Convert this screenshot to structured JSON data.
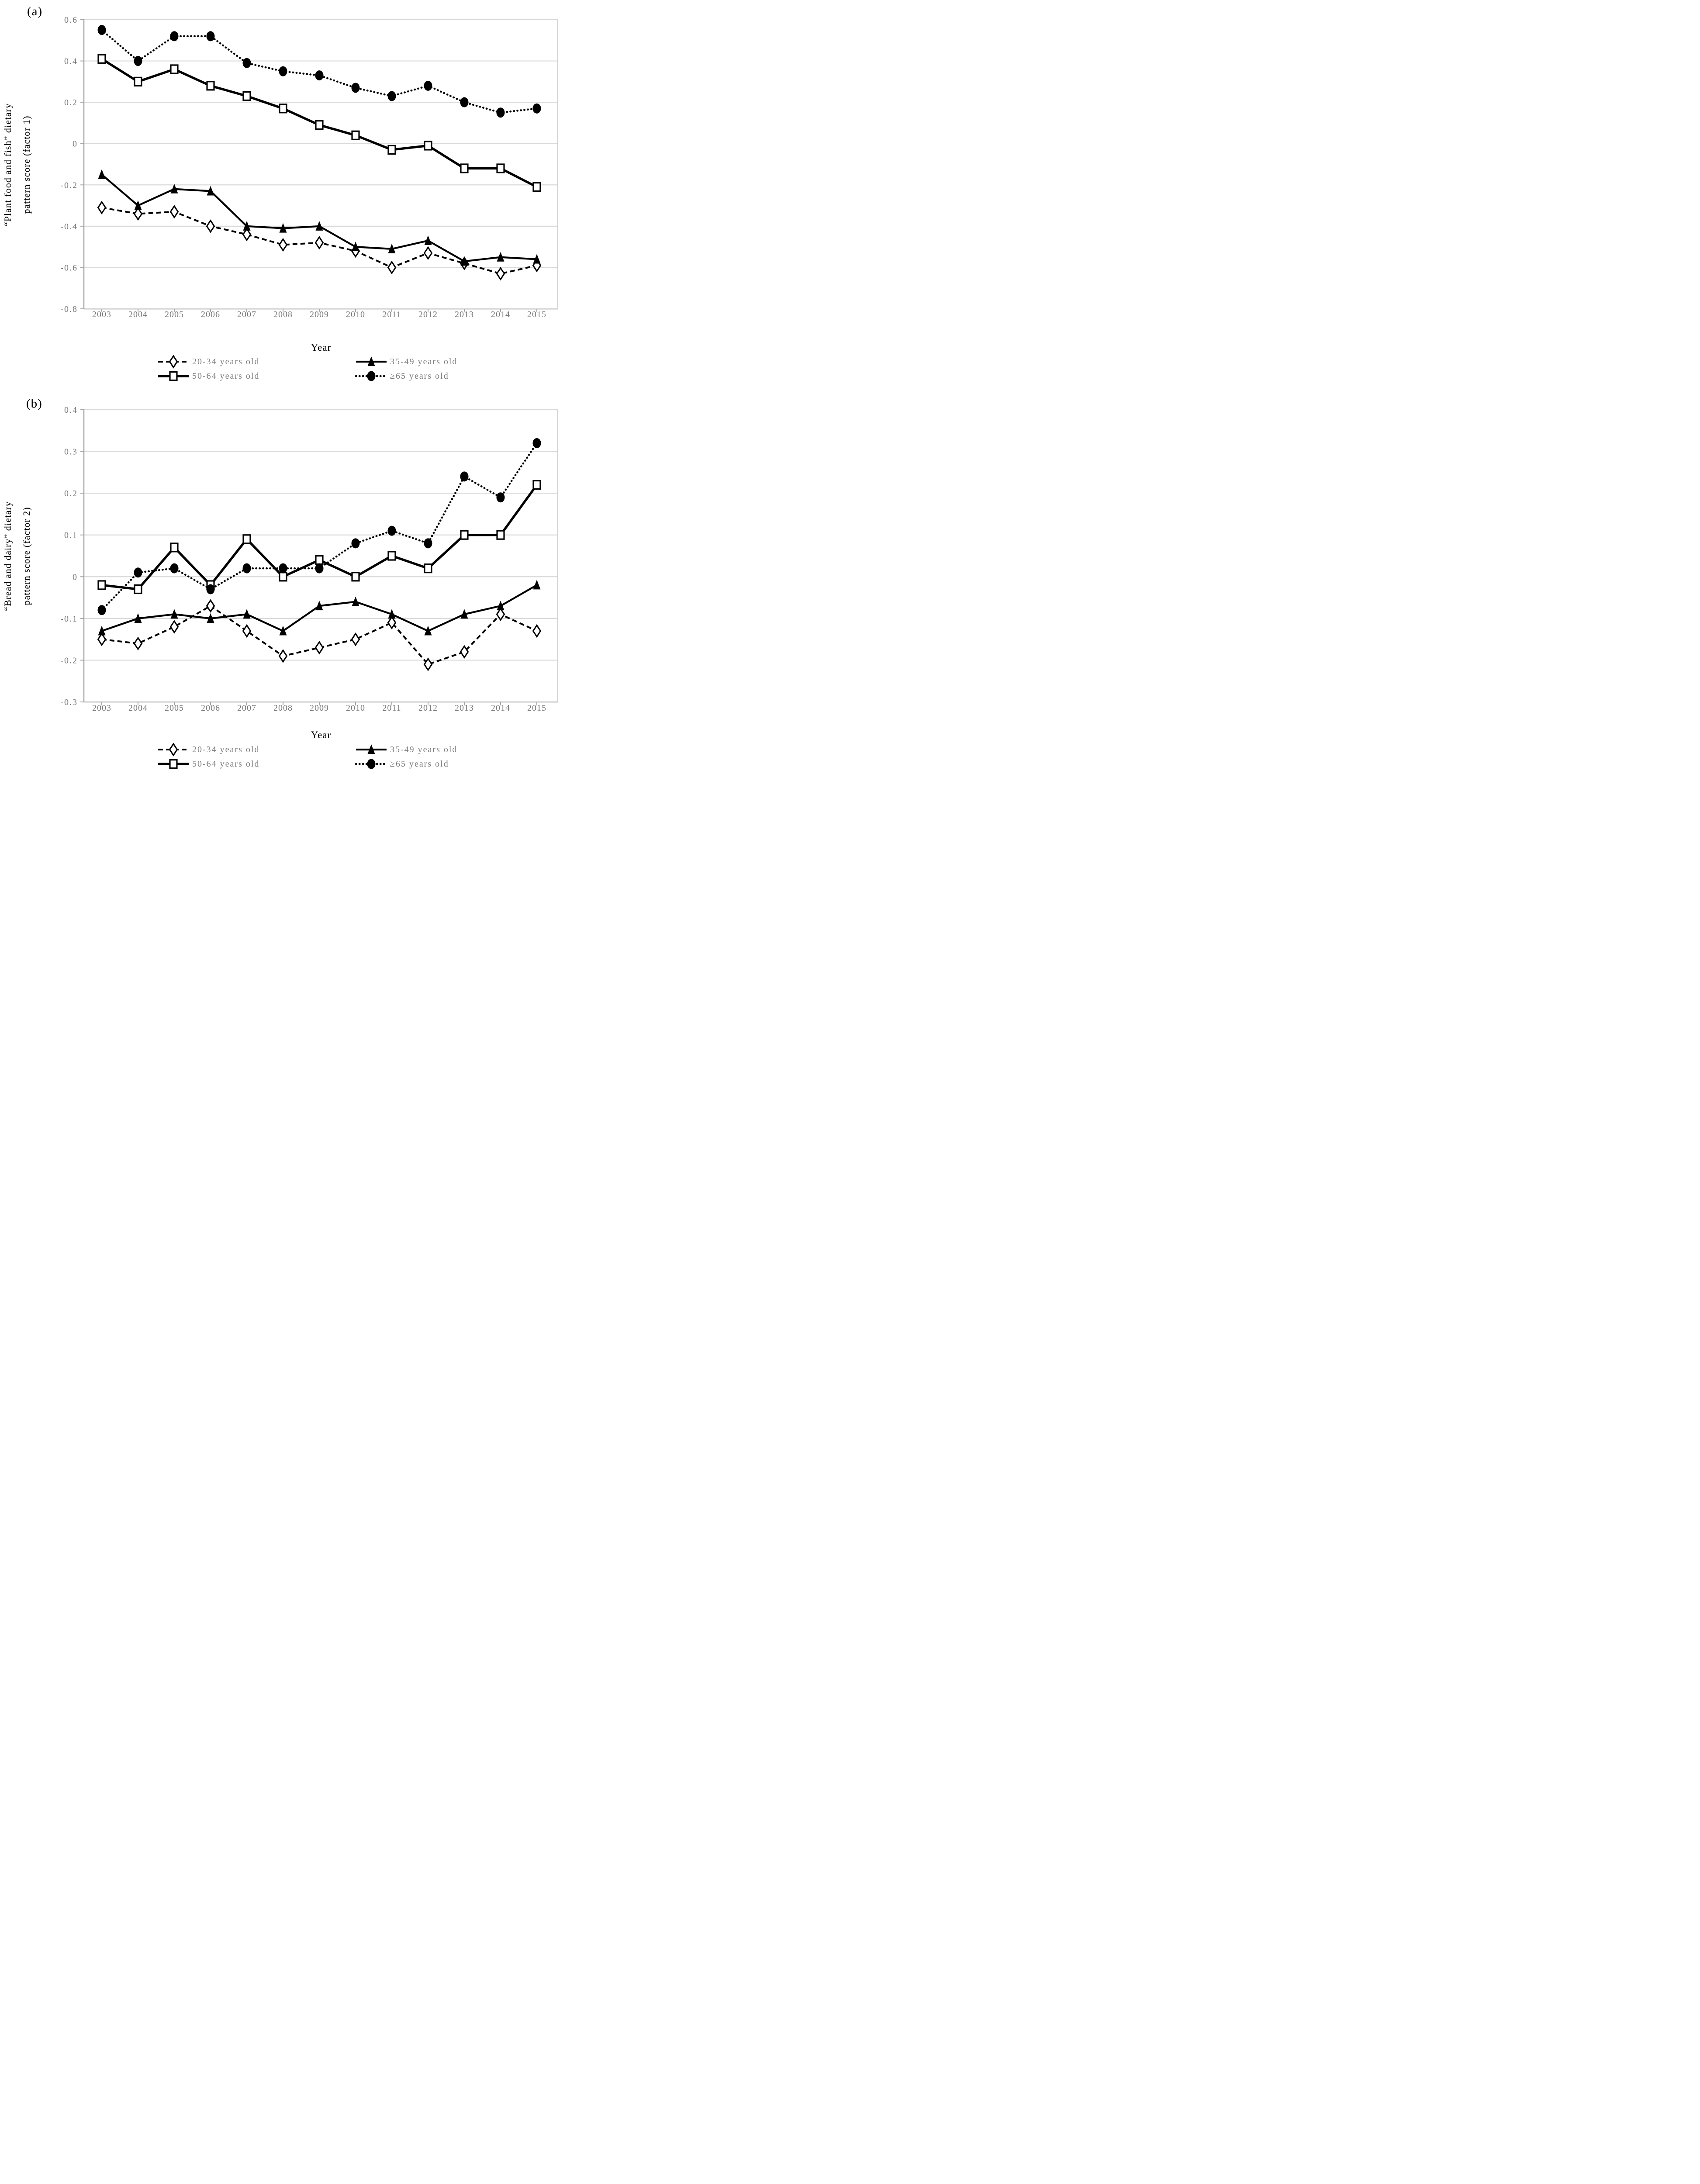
{
  "colors": {
    "series": "#000000",
    "grid": "#d9d9d9",
    "axis_left": "#a6a6a6",
    "axis_right": "#d0d0d0",
    "tick_text": "#767676",
    "label_text": "#000000"
  },
  "legend": [
    {
      "label": "20-34 years old",
      "marker": "diamond",
      "line": "dashed"
    },
    {
      "label": "35-49 years old",
      "marker": "triangle",
      "line": "solid"
    },
    {
      "label": "50-64 years old",
      "marker": "square",
      "line": "solid-thick"
    },
    {
      "label": "≥65 years old",
      "marker": "circle",
      "line": "dotted"
    }
  ],
  "chart_data": [
    {
      "type": "line",
      "panel_label": "(a)",
      "ylabel_lines": [
        "“Plant food and fish” dietary",
        "pattern score (factor 1)"
      ],
      "xlabel": "Year",
      "grid": "horizontal",
      "legend_position": "bottom",
      "x": [
        2003,
        2004,
        2005,
        2006,
        2007,
        2008,
        2009,
        2010,
        2011,
        2012,
        2013,
        2014,
        2015
      ],
      "ylim": [
        -0.8,
        0.6
      ],
      "yticks": [
        0.6,
        0.4,
        0.2,
        0,
        -0.2,
        -0.4,
        -0.6,
        -0.8
      ],
      "series": [
        {
          "name": "20-34 years old",
          "marker": "diamond",
          "line": "dashed",
          "values": [
            -0.31,
            -0.34,
            -0.33,
            -0.4,
            -0.44,
            -0.49,
            -0.48,
            -0.52,
            -0.6,
            -0.53,
            -0.58,
            -0.63,
            -0.59
          ]
        },
        {
          "name": "35-49 years old",
          "marker": "triangle",
          "line": "solid",
          "values": [
            -0.15,
            -0.3,
            -0.22,
            -0.23,
            -0.4,
            -0.41,
            -0.4,
            -0.5,
            -0.51,
            -0.47,
            -0.57,
            -0.55,
            -0.56
          ]
        },
        {
          "name": "50-64 years old",
          "marker": "square",
          "line": "solid-thick",
          "values": [
            0.41,
            0.3,
            0.36,
            0.28,
            0.23,
            0.17,
            0.09,
            0.04,
            -0.03,
            -0.01,
            -0.12,
            -0.12,
            -0.21
          ]
        },
        {
          "name": "≥65 years old",
          "marker": "circle",
          "line": "dotted",
          "values": [
            0.55,
            0.4,
            0.52,
            0.52,
            0.39,
            0.35,
            0.33,
            0.27,
            0.23,
            0.28,
            0.2,
            0.15,
            0.17
          ]
        }
      ]
    },
    {
      "type": "line",
      "panel_label": "(b)",
      "ylabel_lines": [
        "“Bread and dairy” dietary",
        "pattern score (factor 2)"
      ],
      "xlabel": "Year",
      "grid": "horizontal",
      "legend_position": "bottom",
      "x": [
        2003,
        2004,
        2005,
        2006,
        2007,
        2008,
        2009,
        2010,
        2011,
        2012,
        2013,
        2014,
        2015
      ],
      "ylim": [
        -0.3,
        0.4
      ],
      "yticks": [
        0.4,
        0.3,
        0.2,
        0.1,
        0,
        -0.1,
        -0.2,
        -0.3
      ],
      "series": [
        {
          "name": "20-34 years old",
          "marker": "diamond",
          "line": "dashed",
          "values": [
            -0.15,
            -0.16,
            -0.12,
            -0.07,
            -0.13,
            -0.19,
            -0.17,
            -0.15,
            -0.11,
            -0.21,
            -0.18,
            -0.09,
            -0.13
          ]
        },
        {
          "name": "35-49 years old",
          "marker": "triangle",
          "line": "solid",
          "values": [
            -0.13,
            -0.1,
            -0.09,
            -0.1,
            -0.09,
            -0.13,
            -0.07,
            -0.06,
            -0.09,
            -0.13,
            -0.09,
            -0.07,
            -0.02
          ]
        },
        {
          "name": "50-64 years old",
          "marker": "square",
          "line": "solid-thick",
          "values": [
            -0.02,
            -0.03,
            0.07,
            -0.02,
            0.09,
            0.0,
            0.04,
            0.0,
            0.05,
            0.02,
            0.1,
            0.1,
            0.22
          ]
        },
        {
          "name": "≥65 years old",
          "marker": "circle",
          "line": "dotted",
          "values": [
            -0.08,
            0.01,
            0.02,
            -0.03,
            0.02,
            0.02,
            0.02,
            0.08,
            0.11,
            0.08,
            0.24,
            0.19,
            0.32
          ]
        }
      ]
    }
  ]
}
